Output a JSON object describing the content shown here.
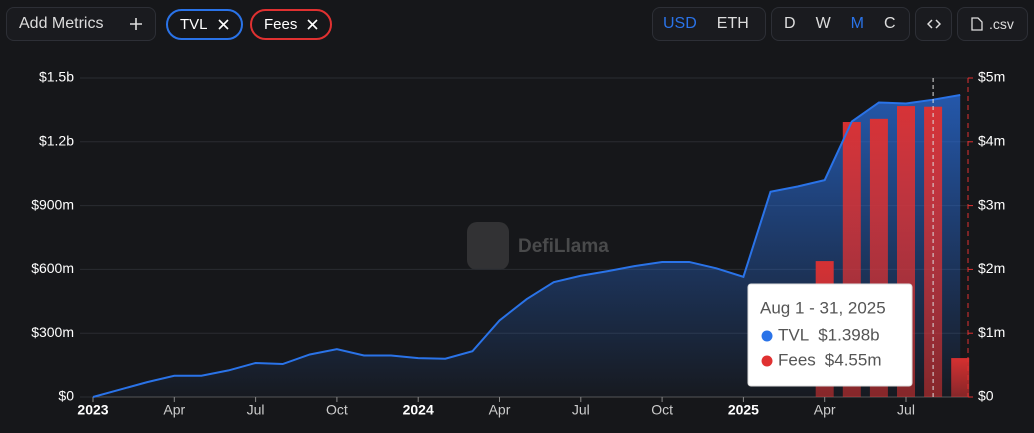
{
  "controls": {
    "add_metrics": "Add Metrics",
    "currency": [
      "USD",
      "ETH"
    ],
    "periods": [
      "D",
      "W",
      "M",
      "C"
    ],
    "csv": ".csv"
  },
  "chart_data": {
    "type": "line-bar",
    "watermark": "DefiLlama",
    "x": [
      "2023-01",
      "2023-02",
      "2023-03",
      "2023-04",
      "2023-05",
      "2023-06",
      "2023-07",
      "2023-08",
      "2023-09",
      "2023-10",
      "2023-11",
      "2023-12",
      "2024-01",
      "2024-02",
      "2024-03",
      "2024-04",
      "2024-05",
      "2024-06",
      "2024-07",
      "2024-08",
      "2024-09",
      "2024-10",
      "2024-11",
      "2024-12",
      "2025-01",
      "2025-02",
      "2025-03",
      "2025-04",
      "2025-05",
      "2025-06",
      "2025-07",
      "2025-08",
      "2025-09"
    ],
    "series": [
      {
        "name": "TVL",
        "color": "#2a73e8",
        "axis": "y",
        "kind": "area",
        "values": [
          0,
          35000000,
          70000000,
          100000000,
          100000000,
          125000000,
          160000000,
          155000000,
          200000000,
          225000000,
          195000000,
          195000000,
          183000000,
          180000000,
          215000000,
          360000000,
          460000000,
          540000000,
          570000000,
          592000000,
          616000000,
          635000000,
          635000000,
          605000000,
          565000000,
          965000000,
          990000000,
          1020000000,
          1295000000,
          1385000000,
          1380000000,
          1398000000,
          1420000000
        ]
      },
      {
        "name": "Fees",
        "color": "#e03131",
        "axis": "y2",
        "kind": "bar",
        "values": [
          null,
          null,
          null,
          null,
          null,
          null,
          null,
          null,
          null,
          null,
          null,
          null,
          null,
          null,
          null,
          null,
          null,
          null,
          null,
          null,
          null,
          null,
          null,
          null,
          null,
          null,
          null,
          2130000,
          4310000,
          4360000,
          4560000,
          4550000,
          610000
        ]
      }
    ],
    "ylim": [
      0,
      1500000000
    ],
    "yticks": [
      {
        "value": 0,
        "label": "$0"
      },
      {
        "value": 300000000,
        "label": "$300m"
      },
      {
        "value": 600000000,
        "label": "$600m"
      },
      {
        "value": 900000000,
        "label": "$900m"
      },
      {
        "value": 1200000000,
        "label": "$1.2b"
      },
      {
        "value": 1500000000,
        "label": "$1.5b"
      }
    ],
    "y2lim": [
      0,
      5000000
    ],
    "y2ticks": [
      {
        "value": 0,
        "label": "$0"
      },
      {
        "value": 1000000,
        "label": "$1m"
      },
      {
        "value": 2000000,
        "label": "$2m"
      },
      {
        "value": 3000000,
        "label": "$3m"
      },
      {
        "value": 4000000,
        "label": "$4m"
      },
      {
        "value": 5000000,
        "label": "$5m"
      }
    ],
    "xticks": [
      {
        "value": "2023-01",
        "label": "2023"
      },
      {
        "value": "2023-04",
        "label": "Apr"
      },
      {
        "value": "2023-07",
        "label": "Jul"
      },
      {
        "value": "2023-10",
        "label": "Oct"
      },
      {
        "value": "2024-01",
        "label": "2024"
      },
      {
        "value": "2024-04",
        "label": "Apr"
      },
      {
        "value": "2024-07",
        "label": "Jul"
      },
      {
        "value": "2024-10",
        "label": "Oct"
      },
      {
        "value": "2025-01",
        "label": "2025"
      },
      {
        "value": "2025-04",
        "label": "Apr"
      },
      {
        "value": "2025-07",
        "label": "Jul"
      }
    ],
    "grid": true,
    "tooltip": {
      "date": "2025-08",
      "title": "Aug 1 - 31, 2025",
      "labels": [
        "$1.398b",
        "$4.55m"
      ]
    }
  }
}
